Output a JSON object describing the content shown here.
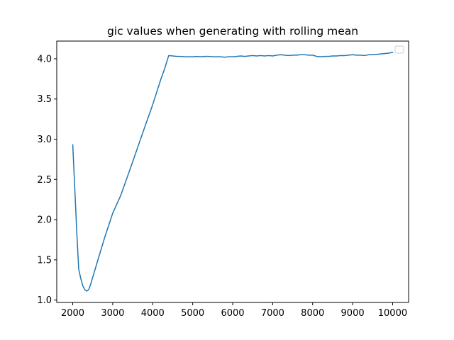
{
  "chart_data": {
    "type": "line",
    "title": "gic values when generating with rolling mean",
    "xlabel": "",
    "ylabel": "",
    "xlim": [
      1600,
      10400
    ],
    "ylim": [
      0.97,
      4.22
    ],
    "x_ticks": [
      2000,
      3000,
      4000,
      5000,
      6000,
      7000,
      8000,
      9000,
      10000
    ],
    "y_ticks": [
      1.0,
      1.5,
      2.0,
      2.5,
      3.0,
      3.5,
      4.0
    ],
    "x_tick_labels": [
      "2000",
      "3000",
      "4000",
      "5000",
      "6000",
      "7000",
      "8000",
      "9000",
      "10000"
    ],
    "y_tick_labels": [
      "1.0",
      "1.5",
      "2.0",
      "2.5",
      "3.0",
      "3.5",
      "4.0"
    ],
    "grid": false,
    "legend": {
      "placement": "upper right",
      "entries": []
    },
    "series": [
      {
        "color": "#1f77b4",
        "x": [
          2000,
          2050,
          2100,
          2150,
          2200,
          2250,
          2300,
          2350,
          2400,
          2450,
          2600,
          2800,
          3000,
          3200,
          3500,
          3800,
          4000,
          4200,
          4300,
          4400,
          4500,
          4600,
          4700,
          4800,
          4900,
          5000,
          5100,
          5200,
          5300,
          5400,
          5500,
          5600,
          5700,
          5800,
          5900,
          6000,
          6100,
          6200,
          6300,
          6400,
          6500,
          6600,
          6700,
          6800,
          6900,
          7000,
          7100,
          7200,
          7300,
          7400,
          7500,
          7600,
          7700,
          7800,
          7900,
          8000,
          8100,
          8200,
          8300,
          8400,
          8500,
          8600,
          8700,
          8800,
          8900,
          9000,
          9100,
          9200,
          9300,
          9400,
          9500,
          9600,
          9700,
          9800,
          9900,
          10000
        ],
        "y": [
          2.93,
          2.4,
          1.85,
          1.38,
          1.27,
          1.18,
          1.13,
          1.11,
          1.13,
          1.2,
          1.45,
          1.78,
          2.08,
          2.3,
          2.72,
          3.15,
          3.43,
          3.74,
          3.88,
          4.04,
          4.035,
          4.03,
          4.03,
          4.025,
          4.025,
          4.025,
          4.03,
          4.025,
          4.03,
          4.03,
          4.025,
          4.025,
          4.025,
          4.02,
          4.025,
          4.025,
          4.03,
          4.035,
          4.03,
          4.035,
          4.04,
          4.035,
          4.04,
          4.035,
          4.04,
          4.035,
          4.045,
          4.05,
          4.045,
          4.04,
          4.045,
          4.045,
          4.05,
          4.05,
          4.045,
          4.045,
          4.03,
          4.025,
          4.03,
          4.03,
          4.035,
          4.035,
          4.04,
          4.04,
          4.045,
          4.05,
          4.045,
          4.045,
          4.04,
          4.05,
          4.05,
          4.055,
          4.06,
          4.065,
          4.07,
          4.08
        ]
      }
    ]
  }
}
